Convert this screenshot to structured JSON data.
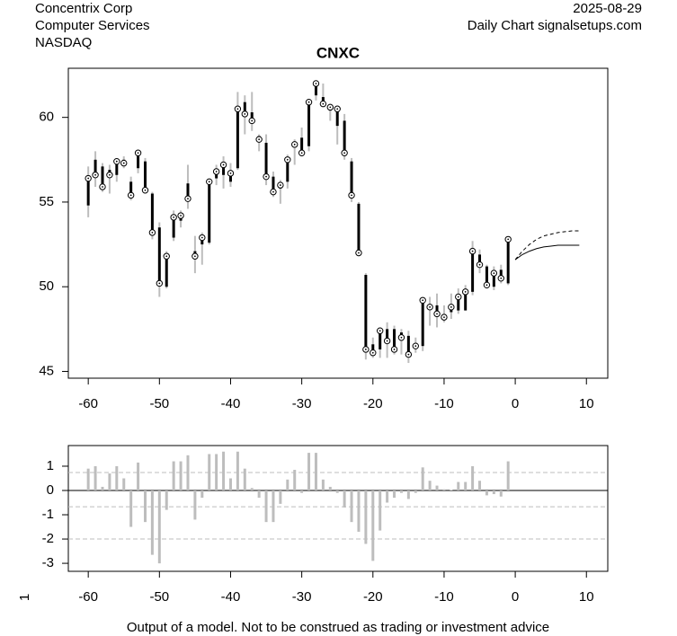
{
  "header": {
    "left": [
      "Concentrix Corp",
      "Computer Services",
      "NASDAQ"
    ],
    "right": [
      "2025-08-29",
      "Daily Chart signalsetups.com"
    ]
  },
  "footer": "Output of a model. Not to be construed as trading or investment advice",
  "chart_data": [
    {
      "type": "ohlc",
      "title": "CNXC",
      "x": [
        -60,
        -59,
        -58,
        -57,
        -56,
        -55,
        -54,
        -53,
        -52,
        -51,
        -50,
        -49,
        -48,
        -47,
        -46,
        -45,
        -44,
        -43,
        -42,
        -41,
        -40,
        -39,
        -38,
        -37,
        -36,
        -35,
        -34,
        -33,
        -32,
        -31,
        -30,
        -29,
        -28,
        -27,
        -26,
        -25,
        -24,
        -23,
        -22,
        -21,
        -20,
        -19,
        -18,
        -17,
        -16,
        -15,
        -14,
        -13,
        -12,
        -11,
        -10,
        -9,
        -8,
        -7,
        -6,
        -5,
        -4,
        -3,
        -2,
        -1
      ],
      "open": [
        54.8,
        57.5,
        57.1,
        56.9,
        56.6,
        57.5,
        56.2,
        57.0,
        57.4,
        55.5,
        53.5,
        50.0,
        52.9,
        53.9,
        56.1,
        52.1,
        52.5,
        52.6,
        56.4,
        56.6,
        56.2,
        57.0,
        60.9,
        60.3,
        58.9,
        58.5,
        56.5,
        55.8,
        56.2,
        58.3,
        58.8,
        58.3,
        61.3,
        61.2,
        60.4,
        59.5,
        59.8,
        57.4,
        54.9,
        50.7,
        46.6,
        46.3,
        47.5,
        47.5,
        47.3,
        47.1,
        46.4,
        46.5,
        48.9,
        48.9,
        48.3,
        48.5,
        48.6,
        48.6,
        49.7,
        51.9,
        51.2,
        50.0,
        51.0,
        50.2
      ],
      "high": [
        57.1,
        58.0,
        57.3,
        57.2,
        57.5,
        57.7,
        56.5,
        58.0,
        57.6,
        55.6,
        53.8,
        52.1,
        54.5,
        54.5,
        57.2,
        53.0,
        53.2,
        56.4,
        57.2,
        57.7,
        57.3,
        61.5,
        61.3,
        61.5,
        59.0,
        59.0,
        56.8,
        56.3,
        57.8,
        58.7,
        59.4,
        61.0,
        62.1,
        62.0,
        60.8,
        60.7,
        60.2,
        57.6,
        55.0,
        50.8,
        47.0,
        47.6,
        47.9,
        47.7,
        47.5,
        47.4,
        47.0,
        49.4,
        49.4,
        49.6,
        48.9,
        49.6,
        49.9,
        50.1,
        52.7,
        52.2,
        51.3,
        51.2,
        51.3,
        52.9
      ],
      "low": [
        54.1,
        55.9,
        55.6,
        55.5,
        56.2,
        57.0,
        55.1,
        56.7,
        55.5,
        52.8,
        49.4,
        49.9,
        52.7,
        53.5,
        54.6,
        50.8,
        51.3,
        52.5,
        56.0,
        55.8,
        55.9,
        56.9,
        59.0,
        59.2,
        58.0,
        56.0,
        55.3,
        54.9,
        55.8,
        57.2,
        57.7,
        58.0,
        61.0,
        60.6,
        59.8,
        58.4,
        57.5,
        55.0,
        51.8,
        45.7,
        45.8,
        45.8,
        45.8,
        46.0,
        46.0,
        45.5,
        46.1,
        46.2,
        47.7,
        47.6,
        47.9,
        48.1,
        48.4,
        48.6,
        49.5,
        50.8,
        49.9,
        49.8,
        50.2,
        50.1
      ],
      "close": [
        56.4,
        56.6,
        55.9,
        56.6,
        57.4,
        57.3,
        55.4,
        57.9,
        55.7,
        53.2,
        50.2,
        51.8,
        54.1,
        54.2,
        55.2,
        51.8,
        52.9,
        56.2,
        56.8,
        57.2,
        56.7,
        60.5,
        60.2,
        59.8,
        58.7,
        56.5,
        55.6,
        56.0,
        57.5,
        58.4,
        57.9,
        60.9,
        62.0,
        60.8,
        60.6,
        60.5,
        57.9,
        55.4,
        52.0,
        46.3,
        46.1,
        47.4,
        46.8,
        46.3,
        47.0,
        46.0,
        46.5,
        49.2,
        48.8,
        48.4,
        48.2,
        48.8,
        49.4,
        49.7,
        52.1,
        51.3,
        50.1,
        50.8,
        50.5,
        52.8
      ],
      "color": "#000000",
      "range_color": "#bdbdbd",
      "forecast": [
        {
          "style": "solid",
          "x": [
            0,
            1,
            2,
            3,
            4,
            5,
            6,
            7,
            8,
            9
          ],
          "values": [
            51.6,
            51.9,
            52.1,
            52.25,
            52.35,
            52.4,
            52.45,
            52.45,
            52.45,
            52.45
          ]
        },
        {
          "style": "dashed",
          "x": [
            0,
            1,
            2,
            3,
            4,
            5,
            6,
            7,
            8,
            9
          ],
          "values": [
            51.6,
            52.1,
            52.5,
            52.8,
            53.0,
            53.1,
            53.2,
            53.25,
            53.3,
            53.3
          ]
        }
      ],
      "xlim": [
        -62.8,
        13
      ],
      "ylim": [
        44.6,
        62.9
      ],
      "xticks": [
        -60,
        -50,
        -40,
        -30,
        -20,
        -10,
        0,
        10
      ],
      "yticks": [
        45,
        50,
        55,
        60
      ]
    },
    {
      "type": "bar",
      "ylabel": "1",
      "x": [
        -60,
        -59,
        -58,
        -57,
        -56,
        -55,
        -54,
        -53,
        -52,
        -51,
        -50,
        -49,
        -48,
        -47,
        -46,
        -45,
        -44,
        -43,
        -42,
        -41,
        -40,
        -39,
        -38,
        -37,
        -36,
        -35,
        -34,
        -33,
        -32,
        -31,
        -30,
        -29,
        -28,
        -27,
        -26,
        -25,
        -24,
        -23,
        -22,
        -21,
        -20,
        -19,
        -18,
        -17,
        -16,
        -15,
        -14,
        -13,
        -12,
        -11,
        -10,
        -9,
        -8,
        -7,
        -6,
        -5,
        -4,
        -3,
        -2,
        -1
      ],
      "values": [
        0.9,
        1.0,
        0.15,
        0.7,
        1.0,
        0.5,
        -1.5,
        1.15,
        -1.3,
        -2.65,
        -3.0,
        -0.8,
        1.2,
        1.2,
        1.45,
        -1.2,
        -0.3,
        1.5,
        1.5,
        1.6,
        0.5,
        1.6,
        0.9,
        0.1,
        -0.3,
        -1.3,
        -1.3,
        -0.55,
        0.45,
        0.85,
        -0.1,
        1.55,
        1.55,
        0.45,
        0.15,
        -0.1,
        -0.7,
        -1.3,
        -1.7,
        -2.2,
        -2.9,
        -1.65,
        -0.5,
        -0.3,
        -0.1,
        -0.35,
        -0.1,
        0.95,
        0.4,
        0.2,
        0.05,
        0.02,
        0.35,
        0.35,
        1.0,
        0.4,
        -0.2,
        -0.15,
        -0.25,
        1.2
      ],
      "color": "#bdbdbd",
      "reference_lines": [
        {
          "value": 0,
          "style": "solid"
        },
        {
          "value": 0.74,
          "style": "dashed"
        },
        {
          "value": -0.67,
          "style": "dashed"
        },
        {
          "value": -2.0,
          "style": "dashed"
        }
      ],
      "xlim": [
        -62.8,
        13
      ],
      "ylim": [
        -3.33,
        1.85
      ],
      "xticks": [
        -60,
        -50,
        -40,
        -30,
        -20,
        -10,
        0,
        10
      ],
      "yticks": [
        1,
        0,
        -1,
        -2,
        -3
      ]
    }
  ]
}
